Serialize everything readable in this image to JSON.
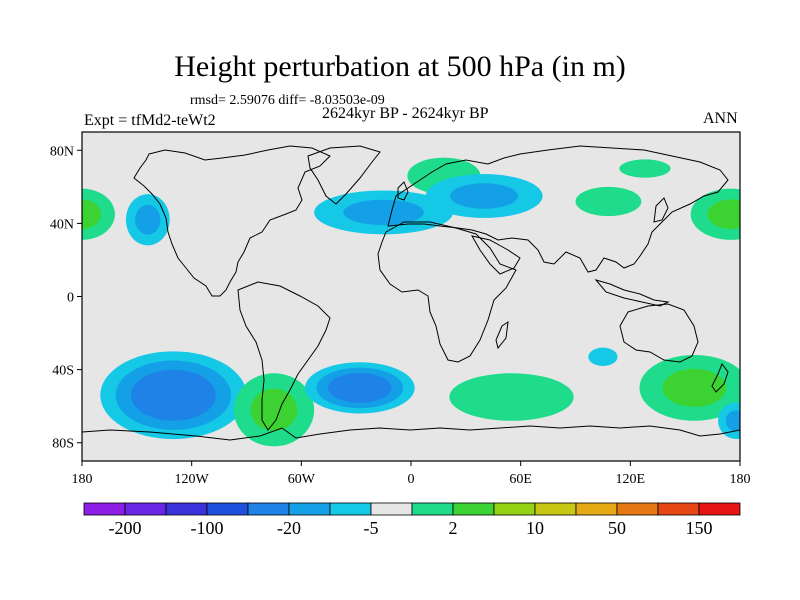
{
  "title": "Height perturbation at 500 hPa (in m)",
  "stats_line": "rmsd= 2.59076 diff= -8.03503e-09",
  "left_label": "Expt = tfMd2-teWt2",
  "center_label": "2624kyr BP - 2624kyr BP",
  "right_label": "ANN",
  "lat_ticks": [
    {
      "value": 80,
      "label": "80N"
    },
    {
      "value": 40,
      "label": "40N"
    },
    {
      "value": 0,
      "label": "0"
    },
    {
      "value": -40,
      "label": "40S"
    },
    {
      "value": -80,
      "label": "80S"
    }
  ],
  "lon_ticks": [
    {
      "value": -180,
      "label": "180"
    },
    {
      "value": -120,
      "label": "120W"
    },
    {
      "value": -60,
      "label": "60W"
    },
    {
      "value": 0,
      "label": "0"
    },
    {
      "value": 60,
      "label": "60E"
    },
    {
      "value": 120,
      "label": "120E"
    },
    {
      "value": 180,
      "label": "180"
    }
  ],
  "colorbar": {
    "colors": [
      "#8c1ee6",
      "#6a28e6",
      "#3c32dc",
      "#1e50dc",
      "#1e82e6",
      "#14a0e6",
      "#14c8e6",
      "#e6e6e6",
      "#1edc8c",
      "#3cd232",
      "#96d214",
      "#c8c814",
      "#e6aa14",
      "#e67814",
      "#e64614",
      "#e61414"
    ],
    "labels": [
      {
        "boundary": 1,
        "text": "-200"
      },
      {
        "boundary": 3,
        "text": "-100"
      },
      {
        "boundary": 5,
        "text": "-20"
      },
      {
        "boundary": 7,
        "text": "-5"
      },
      {
        "boundary": 9,
        "text": "2"
      },
      {
        "boundary": 11,
        "text": "10"
      },
      {
        "boundary": 13,
        "text": "50"
      },
      {
        "boundary": 15,
        "text": "150"
      }
    ]
  },
  "map": {
    "background": "#e6e6e6",
    "lon_range": [
      -180,
      180
    ],
    "lat_range": [
      -90,
      90
    ],
    "anomalies": [
      {
        "name": "anomaly-nw-pacific-pos",
        "lon": -180,
        "lat": 45,
        "rx": 18,
        "ry": 14,
        "levels": [
          "#1edc8c",
          "#3cd232"
        ]
      },
      {
        "name": "anomaly-ne-pacific-pos",
        "lon": 175,
        "lat": 45,
        "rx": 22,
        "ry": 14,
        "levels": [
          "#1edc8c",
          "#3cd232"
        ]
      },
      {
        "name": "anomaly-n-pacific-neg",
        "lon": -144,
        "lat": 42,
        "rx": 12,
        "ry": 14,
        "levels": [
          "#14c8e6",
          "#14a0e6"
        ]
      },
      {
        "name": "anomaly-n-atlantic-neg",
        "lon": -15,
        "lat": 46,
        "rx": 38,
        "ry": 12,
        "levels": [
          "#14c8e6",
          "#14a0e6"
        ]
      },
      {
        "name": "anomaly-europe-pos",
        "lon": 18,
        "lat": 66,
        "rx": 20,
        "ry": 10,
        "levels": [
          "#1edc8c"
        ]
      },
      {
        "name": "anomaly-siberia-neg",
        "lon": 40,
        "lat": 55,
        "rx": 32,
        "ry": 12,
        "levels": [
          "#14c8e6",
          "#14a0e6"
        ]
      },
      {
        "name": "anomaly-asia-pos",
        "lon": 108,
        "lat": 52,
        "rx": 18,
        "ry": 8,
        "levels": [
          "#1edc8c"
        ]
      },
      {
        "name": "anomaly-arctic-pos",
        "lon": 128,
        "lat": 70,
        "rx": 14,
        "ry": 5,
        "levels": [
          "#1edc8c"
        ]
      },
      {
        "name": "anomaly-s-pacific-neg",
        "lon": -130,
        "lat": -54,
        "rx": 40,
        "ry": 24,
        "levels": [
          "#14c8e6",
          "#14a0e6",
          "#1e82e6"
        ]
      },
      {
        "name": "anomaly-s-america-pos",
        "lon": -75,
        "lat": -62,
        "rx": 22,
        "ry": 20,
        "levels": [
          "#1edc8c",
          "#3cd232"
        ]
      },
      {
        "name": "anomaly-s-atlantic-neg",
        "lon": -28,
        "lat": -50,
        "rx": 30,
        "ry": 14,
        "levels": [
          "#14c8e6",
          "#14a0e6",
          "#1e82e6"
        ]
      },
      {
        "name": "anomaly-s-indian-pos",
        "lon": 55,
        "lat": -55,
        "rx": 34,
        "ry": 13,
        "levels": [
          "#1edc8c"
        ]
      },
      {
        "name": "anomaly-australia-neg",
        "lon": 105,
        "lat": -33,
        "rx": 8,
        "ry": 5,
        "levels": [
          "#14c8e6"
        ]
      },
      {
        "name": "anomaly-nz-pos",
        "lon": 155,
        "lat": -50,
        "rx": 30,
        "ry": 18,
        "levels": [
          "#1edc8c",
          "#3cd232"
        ]
      },
      {
        "name": "anomaly-sw-pacific-neg",
        "lon": 178,
        "lat": -68,
        "rx": 10,
        "ry": 10,
        "levels": [
          "#14c8e6",
          "#14a0e6"
        ]
      }
    ]
  }
}
